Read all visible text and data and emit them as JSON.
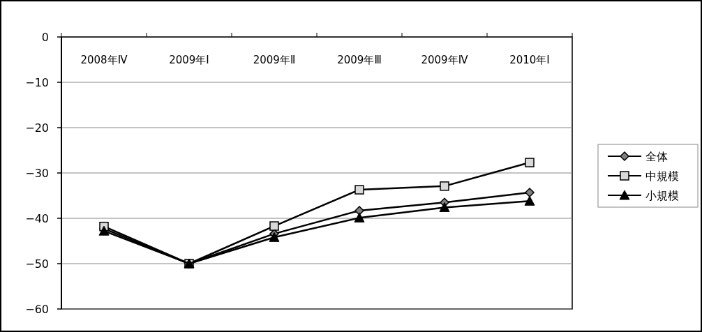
{
  "chart_data": {
    "type": "line",
    "categories": [
      "2008年Ⅳ",
      "2009年Ⅰ",
      "2009年Ⅱ",
      "2009年Ⅲ",
      "2009年Ⅳ",
      "2010年Ⅰ"
    ],
    "series": [
      {
        "name": "全体",
        "color": "#808080",
        "marker": "diamond",
        "values": [
          -42.3,
          -50,
          -43.4,
          -38.3,
          -36.5,
          -34.3
        ]
      },
      {
        "name": "中規模",
        "color": "#d9d9d9",
        "marker": "square",
        "values": [
          -41.8,
          -50,
          -41.7,
          -33.7,
          -32.9,
          -27.7
        ]
      },
      {
        "name": "小規模",
        "color": "#000000",
        "marker": "triangle",
        "values": [
          -42.8,
          -50,
          -44.2,
          -39.9,
          -37.6,
          -36.2
        ]
      }
    ],
    "ylim": [
      -60,
      0
    ],
    "yticks": [
      0,
      -10,
      -20,
      -30,
      -40,
      -50,
      -60
    ],
    "grid": "y",
    "legend": "right",
    "line_style": "solid"
  }
}
